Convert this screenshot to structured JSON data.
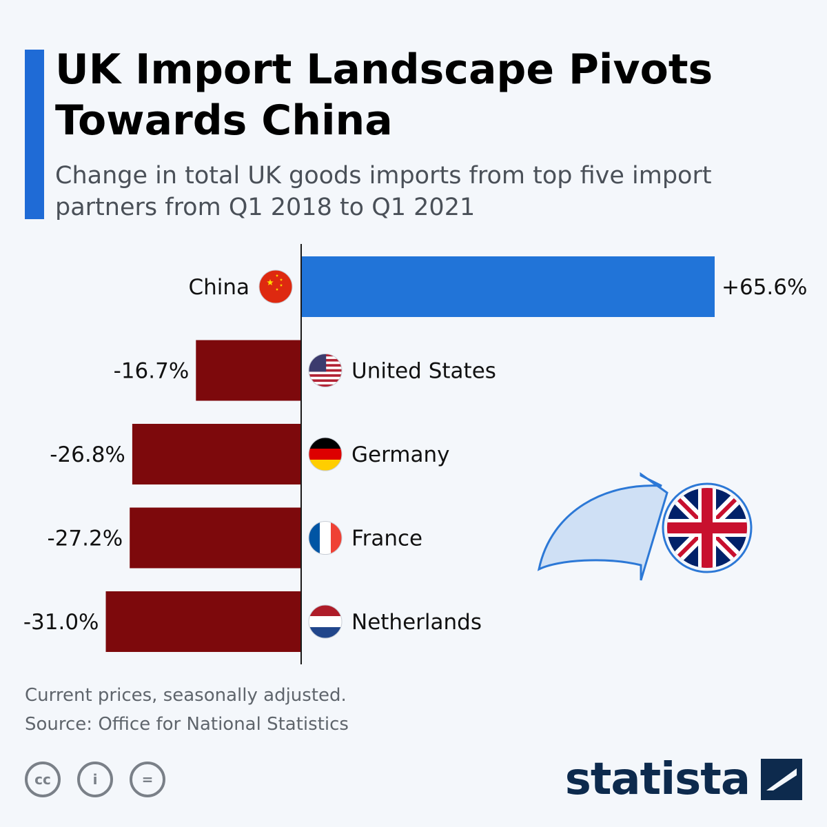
{
  "header": {
    "title": "UK Import Landscape Pivots Towards China",
    "subtitle": "Change in total UK goods imports from top five import partners from Q1 2018 to Q1 2021"
  },
  "chart_data": {
    "type": "bar",
    "orientation": "horizontal",
    "categories": [
      "China",
      "United States",
      "Germany",
      "France",
      "Netherlands"
    ],
    "values": [
      65.6,
      -16.7,
      -26.8,
      -27.2,
      -31.0
    ],
    "labels": [
      "+65.6%",
      "-16.7%",
      "-26.8%",
      "-27.2%",
      "-31.0%"
    ],
    "unit": "%",
    "colors": {
      "positive": "#2174d8",
      "negative": "#7d090c"
    },
    "title": "UK Import Landscape Pivots Towards China",
    "xlabel": "",
    "ylabel": "",
    "xlim": [
      -31.0,
      65.6
    ],
    "grid": false,
    "legend": "none"
  },
  "flags": [
    "china-flag-icon",
    "usa-flag-icon",
    "germany-flag-icon",
    "france-flag-icon",
    "netherlands-flag-icon"
  ],
  "footer": {
    "note": "Current prices, seasonally adjusted.",
    "source": "Source: Office for National Statistics",
    "cc_labels": [
      "cc",
      "i",
      "="
    ],
    "logo_text": "statista"
  }
}
